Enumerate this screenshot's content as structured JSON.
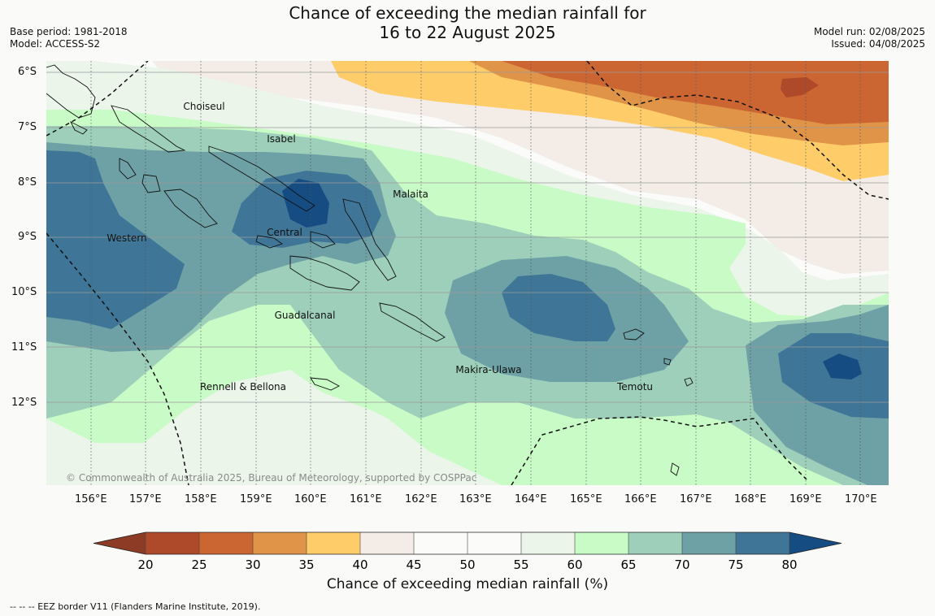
{
  "title": {
    "line1": "Chance of exceeding the median rainfall for",
    "line2": "16 to 22 August 2025"
  },
  "meta_left": {
    "base_period": "Base period: 1981-2018",
    "model": "Model: ACCESS-S2"
  },
  "meta_right": {
    "model_run": "Model run: 02/08/2025",
    "issued": "Issued: 04/08/2025"
  },
  "map": {
    "lat_ticks": [
      "6°S",
      "7°S",
      "8°S",
      "9°S",
      "10°S",
      "11°S",
      "12°S"
    ],
    "lon_ticks": [
      "156°E",
      "157°E",
      "158°E",
      "159°E",
      "160°E",
      "161°E",
      "162°E",
      "163°E",
      "164°E",
      "165°E",
      "166°E",
      "167°E",
      "168°E",
      "169°E",
      "170°E"
    ],
    "provinces": [
      "Choiseul",
      "Isabel",
      "Malaita",
      "Western",
      "Central",
      "Guadalcanal",
      "Makira-Ulawa",
      "Temotu",
      "Rennell & Bellona"
    ],
    "copyright": "© Commonwealth of Australia 2025, Bureau of Meteorology, supported by COSPPac"
  },
  "colorbar": {
    "ticks": [
      "20",
      "25",
      "30",
      "35",
      "40",
      "45",
      "50",
      "55",
      "60",
      "65",
      "70",
      "75",
      "80"
    ],
    "colors": [
      "#ae4a2a",
      "#cb6633",
      "#e09448",
      "#fecd6a",
      "#f3ece7",
      "#fbfcf9",
      "#fbfcf9",
      "#ebf5ea",
      "#c9fbc7",
      "#9dcfba",
      "#6da1a5",
      "#3f7698"
    ],
    "under_color": "#8e3b26",
    "over_color": "#154c82",
    "label": "Chance of exceeding median rainfall (%)"
  },
  "footnote": "--  --  -- EEZ border V11 (Flanders Marine Institute, 2019)."
}
